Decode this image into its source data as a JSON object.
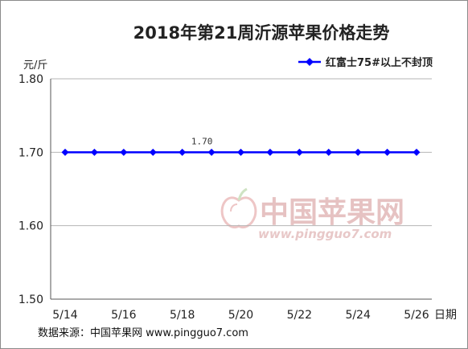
{
  "chart_data": {
    "type": "line",
    "title": "2018年第21周沂源苹果价格走势",
    "ylabel": "元/斤",
    "xlabel": "日期",
    "ylim": [
      1.5,
      1.8
    ],
    "yticks": [
      "1.50",
      "1.60",
      "1.70",
      "1.80"
    ],
    "categories": [
      "5/14",
      "5/15",
      "5/16",
      "5/17",
      "5/18",
      "5/19",
      "5/20",
      "5/21",
      "5/22",
      "5/23",
      "5/24",
      "5/25",
      "5/26"
    ],
    "xtick_labels": [
      "5/14",
      "5/16",
      "5/18",
      "5/20",
      "5/22",
      "5/24",
      "5/26"
    ],
    "series": [
      {
        "name": "红富士75#以上不封顶",
        "values": [
          1.7,
          1.7,
          1.7,
          1.7,
          1.7,
          1.7,
          1.7,
          1.7,
          1.7,
          1.7,
          1.7,
          1.7,
          1.7
        ],
        "color": "#0000ff"
      }
    ],
    "data_labels": [
      {
        "index": 5,
        "text": "1.70"
      }
    ],
    "grid": true,
    "legend_position": "top-right"
  },
  "source_text": "数据来源：中国苹果网 www.pingguo7.com",
  "watermark": {
    "name": "中国苹果网",
    "url": "www.pingguo7.com",
    "icon": "apple-logo-icon"
  },
  "colors": {
    "line": "#0000ff",
    "grid": "#b5b5b5",
    "axis": "#555555"
  }
}
